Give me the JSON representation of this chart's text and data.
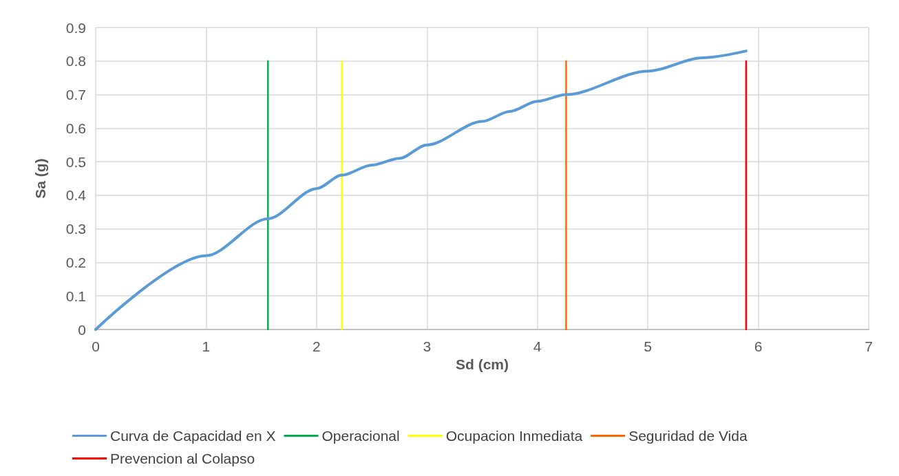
{
  "chart_data": {
    "type": "line",
    "xlabel": "Sd (cm)",
    "ylabel": "Sa (g)",
    "xlim": [
      0,
      7
    ],
    "xticks": [
      0,
      1,
      2,
      3,
      4,
      5,
      6,
      7
    ],
    "ylim": [
      0,
      0.9
    ],
    "yticks": [
      0,
      0.1,
      0.2,
      0.3,
      0.4,
      0.5,
      0.6,
      0.7,
      0.8,
      0.9
    ],
    "grid": true,
    "legend": "bottom",
    "marker": "none",
    "line_style": "solid",
    "series": [
      {
        "name": "Curva de Capacidad en X",
        "color": "#5b9bd5",
        "x": [
          0,
          1,
          1.56,
          2,
          2.23,
          2.5,
          2.75,
          3,
          3.5,
          3.75,
          4,
          4.26,
          5,
          5.5,
          5.89
        ],
        "values": [
          0,
          0.22,
          0.33,
          0.42,
          0.46,
          0.49,
          0.51,
          0.55,
          0.62,
          0.65,
          0.68,
          0.7,
          0.77,
          0.81,
          0.83
        ]
      },
      {
        "name": "Operacional",
        "color": "#00b050",
        "x": [
          1.56,
          1.56
        ],
        "values": [
          0,
          0.8
        ]
      },
      {
        "name": "Ocupacion Inmediata",
        "color": "#ffff00",
        "x": [
          2.23,
          2.23
        ],
        "values": [
          0,
          0.8
        ]
      },
      {
        "name": "Seguridad de Vida",
        "color": "#ff6600",
        "x": [
          4.26,
          4.26
        ],
        "values": [
          0,
          0.8
        ]
      },
      {
        "name": "Prevencion al Colapso",
        "color": "#ff0000",
        "x": [
          5.89,
          5.89
        ],
        "values": [
          0,
          0.8
        ]
      }
    ]
  }
}
